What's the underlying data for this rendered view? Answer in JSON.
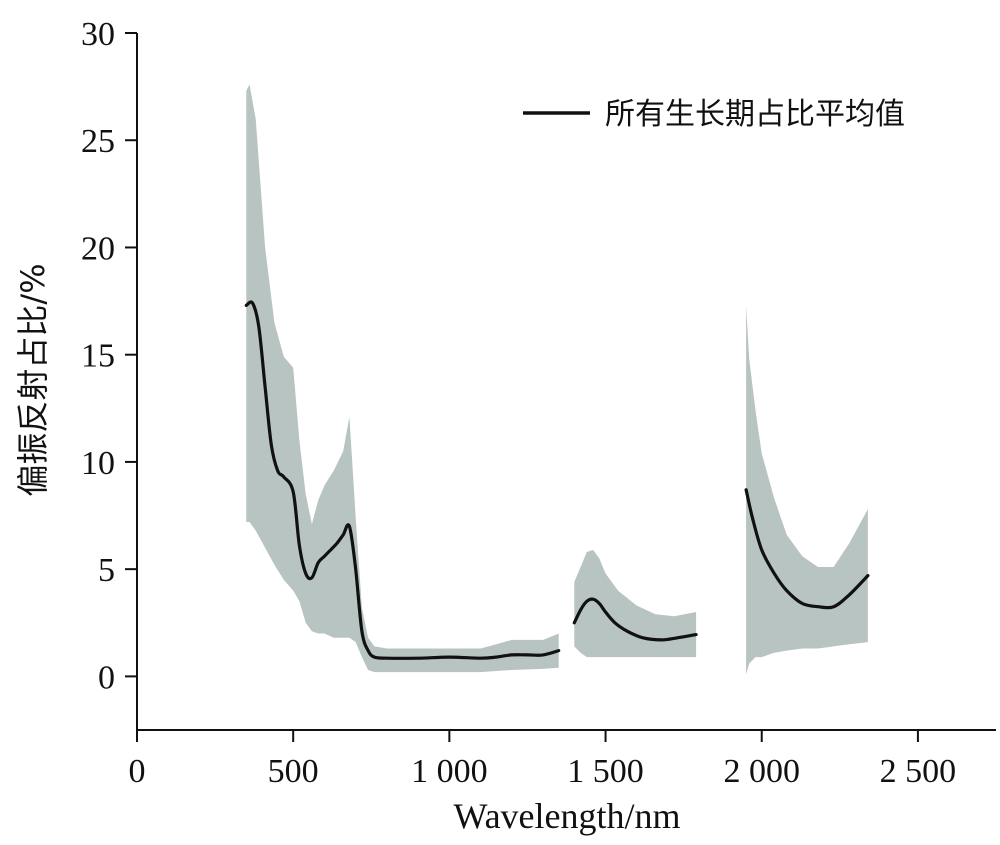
{
  "chart_data": {
    "type": "line",
    "title": "",
    "xlabel": "Wavelength/nm",
    "ylabel": "偏振反射占比/%",
    "xlim": [
      0,
      2750
    ],
    "ylim": [
      -2.5,
      30
    ],
    "x_ticks": [
      0,
      500,
      1000,
      1500,
      2000,
      2500
    ],
    "x_tick_labels": [
      "0",
      "500",
      "1 000",
      "1 500",
      "2 000",
      "2 500"
    ],
    "y_ticks": [
      0,
      5,
      10,
      15,
      20,
      25,
      30
    ],
    "y_tick_labels": [
      "0",
      "5",
      "10",
      "15",
      "20",
      "25",
      "30"
    ],
    "legend": {
      "position": "top-right"
    },
    "colors": {
      "line": "#111111",
      "band": "#b8c4c2"
    },
    "series": [
      {
        "name": "所有生长期占比平均值",
        "segments": [
          {
            "x": [
              350,
              370,
              390,
              410,
              430,
              450,
              470,
              500,
              520,
              540,
              560,
              580,
              600,
              620,
              640,
              660,
              680,
              700,
              720,
              740,
              760,
              800,
              900,
              1000,
              1100,
              1150,
              1200,
              1250,
              1300,
              1350
            ],
            "y": [
              17.3,
              17.4,
              16.3,
              13.5,
              10.8,
              9.6,
              9.3,
              8.6,
              6.1,
              4.8,
              4.6,
              5.3,
              5.6,
              5.9,
              6.2,
              6.6,
              7.0,
              5.0,
              2.1,
              1.2,
              0.9,
              0.85,
              0.85,
              0.9,
              0.85,
              0.9,
              1.0,
              1.0,
              1.0,
              1.2
            ]
          },
          {
            "x": [
              1400,
              1420,
              1440,
              1460,
              1480,
              1500,
              1530,
              1570,
              1620,
              1680,
              1730,
              1790
            ],
            "y": [
              2.5,
              3.1,
              3.5,
              3.6,
              3.4,
              3.0,
              2.5,
              2.1,
              1.8,
              1.7,
              1.8,
              1.95
            ]
          },
          {
            "x": [
              1950,
              1970,
              2000,
              2040,
              2080,
              2130,
              2180,
              2230,
              2280,
              2340
            ],
            "y": [
              8.7,
              7.4,
              5.9,
              4.8,
              4.0,
              3.4,
              3.25,
              3.25,
              3.8,
              4.7
            ]
          }
        ],
        "band_segments": [
          {
            "x": [
              350,
              360,
              380,
              410,
              440,
              470,
              500,
              520,
              540,
              560,
              580,
              600,
              630,
              660,
              680,
              700,
              720,
              740,
              760,
              800,
              900,
              1000,
              1100,
              1150,
              1200,
              1300,
              1350
            ],
            "upper": [
              27.3,
              27.6,
              26.0,
              20.0,
              16.5,
              14.9,
              14.4,
              11.0,
              8.5,
              7.1,
              8.2,
              8.9,
              9.6,
              10.5,
              12.1,
              7.4,
              3.2,
              1.8,
              1.4,
              1.3,
              1.3,
              1.3,
              1.3,
              1.5,
              1.7,
              1.7,
              2.0
            ],
            "lower": [
              7.2,
              7.2,
              6.8,
              6.0,
              5.2,
              4.5,
              4.0,
              3.5,
              2.5,
              2.1,
              2.0,
              2.0,
              1.8,
              1.8,
              1.8,
              1.6,
              0.9,
              0.3,
              0.2,
              0.2,
              0.2,
              0.2,
              0.2,
              0.25,
              0.3,
              0.35,
              0.4
            ]
          },
          {
            "x": [
              1400,
              1420,
              1440,
              1460,
              1480,
              1500,
              1540,
              1600,
              1660,
              1720,
              1790
            ],
            "upper": [
              4.4,
              5.1,
              5.8,
              5.9,
              5.5,
              4.8,
              4.0,
              3.3,
              2.9,
              2.8,
              3.0
            ],
            "lower": [
              1.4,
              1.1,
              0.9,
              0.9,
              0.9,
              0.9,
              0.9,
              0.9,
              0.9,
              0.9,
              0.9
            ]
          },
          {
            "x": [
              1950,
              1960,
              1980,
              2000,
              2040,
              2080,
              2130,
              2180,
              2230,
              2280,
              2340
            ],
            "upper": [
              17.3,
              14.8,
              12.4,
              10.4,
              8.3,
              6.6,
              5.6,
              5.1,
              5.1,
              6.2,
              7.8
            ],
            "lower": [
              0.1,
              0.6,
              0.9,
              0.9,
              1.1,
              1.2,
              1.3,
              1.3,
              1.4,
              1.5,
              1.6
            ]
          }
        ]
      }
    ]
  }
}
